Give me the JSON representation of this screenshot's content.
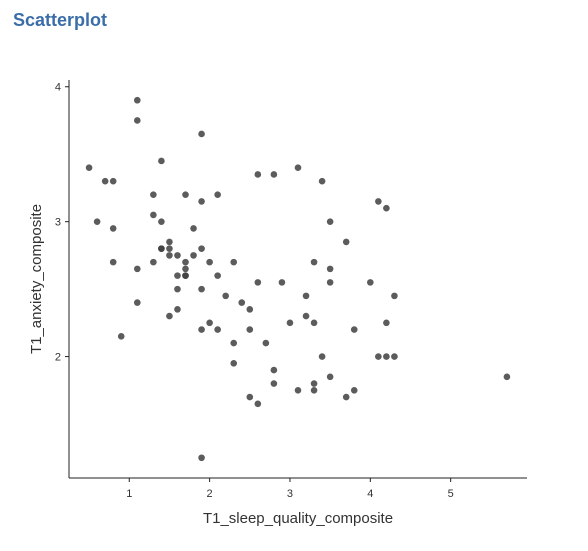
{
  "page_title": "Scatterplot",
  "chart_data": {
    "type": "scatter",
    "xlabel": "T1_sleep_quality_composite",
    "ylabel": "T1_anxiety_composite",
    "xlim": [
      0.25,
      5.95
    ],
    "ylim": [
      1.1,
      4.05
    ],
    "xticks": [
      1,
      2,
      3,
      4,
      5
    ],
    "yticks": [
      2,
      3,
      4
    ],
    "grid": false,
    "point_color": "#3f3f3f",
    "points": [
      [
        0.5,
        3.4
      ],
      [
        0.6,
        3.0
      ],
      [
        0.7,
        3.3
      ],
      [
        0.8,
        3.3
      ],
      [
        0.8,
        2.95
      ],
      [
        0.8,
        2.7
      ],
      [
        0.9,
        2.15
      ],
      [
        1.1,
        3.9
      ],
      [
        1.1,
        3.75
      ],
      [
        1.1,
        2.65
      ],
      [
        1.1,
        2.4
      ],
      [
        1.3,
        3.2
      ],
      [
        1.3,
        3.05
      ],
      [
        1.3,
        2.7
      ],
      [
        1.4,
        3.45
      ],
      [
        1.4,
        3.0
      ],
      [
        1.4,
        2.8
      ],
      [
        1.4,
        2.8
      ],
      [
        1.5,
        2.85
      ],
      [
        1.5,
        2.8
      ],
      [
        1.5,
        2.75
      ],
      [
        1.5,
        2.3
      ],
      [
        1.6,
        2.75
      ],
      [
        1.6,
        2.6
      ],
      [
        1.6,
        2.5
      ],
      [
        1.6,
        2.35
      ],
      [
        1.7,
        3.2
      ],
      [
        1.7,
        2.7
      ],
      [
        1.7,
        2.65
      ],
      [
        1.7,
        2.6
      ],
      [
        1.7,
        2.6
      ],
      [
        1.8,
        2.95
      ],
      [
        1.8,
        2.75
      ],
      [
        1.9,
        3.65
      ],
      [
        1.9,
        3.15
      ],
      [
        1.9,
        2.8
      ],
      [
        1.9,
        2.5
      ],
      [
        1.9,
        2.2
      ],
      [
        1.9,
        1.25
      ],
      [
        2.0,
        2.7
      ],
      [
        2.0,
        2.25
      ],
      [
        2.1,
        3.2
      ],
      [
        2.1,
        2.6
      ],
      [
        2.1,
        2.2
      ],
      [
        2.2,
        2.45
      ],
      [
        2.3,
        2.7
      ],
      [
        2.3,
        2.1
      ],
      [
        2.3,
        1.95
      ],
      [
        2.4,
        2.4
      ],
      [
        2.5,
        2.35
      ],
      [
        2.5,
        2.2
      ],
      [
        2.5,
        1.7
      ],
      [
        2.6,
        3.35
      ],
      [
        2.6,
        2.55
      ],
      [
        2.6,
        1.65
      ],
      [
        2.7,
        2.1
      ],
      [
        2.8,
        3.35
      ],
      [
        2.8,
        1.9
      ],
      [
        2.8,
        1.8
      ],
      [
        2.9,
        2.55
      ],
      [
        3.0,
        2.25
      ],
      [
        3.1,
        3.4
      ],
      [
        3.1,
        1.75
      ],
      [
        3.2,
        2.45
      ],
      [
        3.2,
        2.3
      ],
      [
        3.3,
        2.7
      ],
      [
        3.3,
        2.25
      ],
      [
        3.3,
        1.8
      ],
      [
        3.3,
        1.75
      ],
      [
        3.4,
        3.3
      ],
      [
        3.4,
        2.0
      ],
      [
        3.5,
        3.0
      ],
      [
        3.5,
        2.65
      ],
      [
        3.5,
        2.55
      ],
      [
        3.5,
        1.85
      ],
      [
        3.7,
        2.85
      ],
      [
        3.7,
        1.7
      ],
      [
        3.8,
        2.2
      ],
      [
        3.8,
        1.75
      ],
      [
        4.0,
        2.55
      ],
      [
        4.1,
        3.15
      ],
      [
        4.1,
        2.0
      ],
      [
        4.2,
        3.1
      ],
      [
        4.2,
        2.25
      ],
      [
        4.2,
        2.0
      ],
      [
        4.3,
        2.45
      ],
      [
        4.3,
        2.0
      ],
      [
        5.7,
        1.85
      ]
    ]
  }
}
